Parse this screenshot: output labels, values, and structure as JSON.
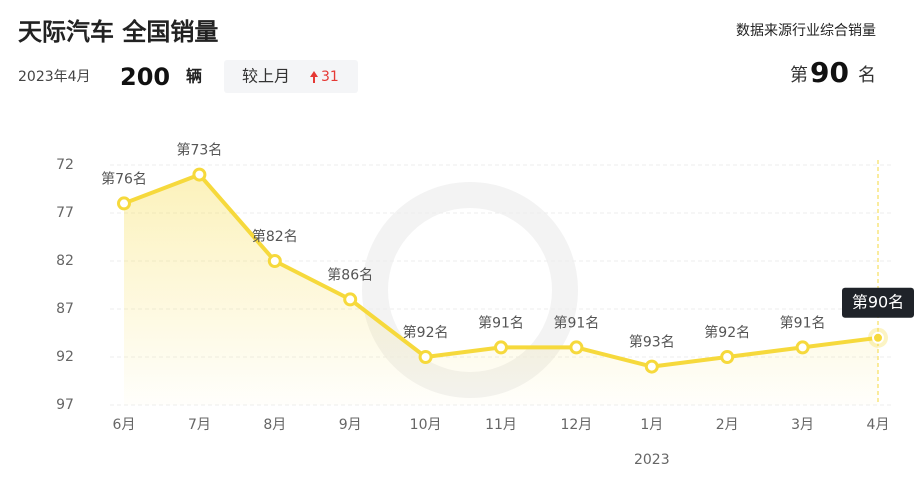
{
  "header": {
    "title": "天际汽车 全国销量",
    "date": "2023年4月",
    "sales": 200,
    "unit": "辆",
    "compare_label": "较上月",
    "change": 31,
    "source": "数据来源行业综合销量",
    "rank_prefix": "第",
    "rank": 90,
    "rank_suffix": "名"
  },
  "chart_data": {
    "type": "line",
    "categories": [
      "6月",
      "7月",
      "8月",
      "9月",
      "10月",
      "11月",
      "12月",
      "1月",
      "2月",
      "3月",
      "4月"
    ],
    "year_label": "2023",
    "values": [
      76,
      73,
      82,
      86,
      92,
      91,
      91,
      93,
      92,
      91,
      90
    ],
    "value_labels": [
      "第76名",
      "第73名",
      "第82名",
      "第86名",
      "第92名",
      "第91名",
      "第91名",
      "第93名",
      "第92名",
      "第91名",
      "第90名"
    ],
    "color": "#f6d93c",
    "ylim": [
      97,
      72
    ],
    "yticks": [
      72,
      77,
      82,
      87,
      92,
      97
    ],
    "grid": true
  }
}
